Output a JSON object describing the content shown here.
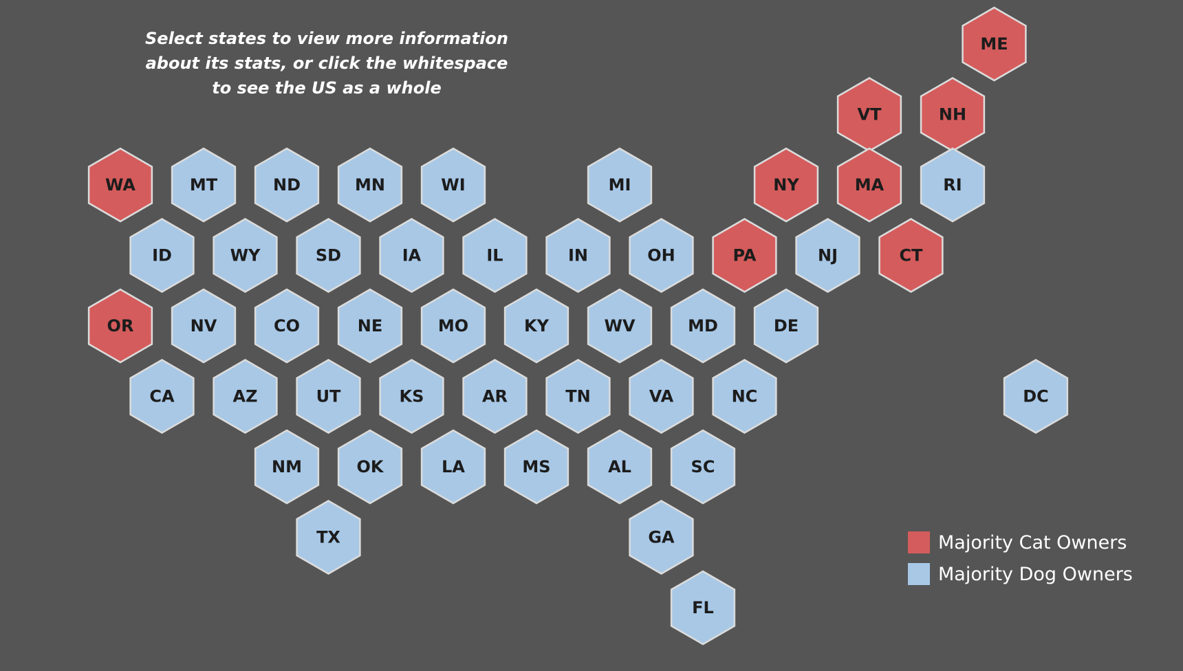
{
  "instructions": "Select states to view more information\nabout its stats, or click the whitespace\nto see the US as a whole",
  "colors": {
    "background": "#555555",
    "cat": "#d55c5c",
    "dog": "#a8c8e6"
  },
  "legend": [
    {
      "label": "Majority Cat Owners",
      "color": "#d55c5c"
    },
    {
      "label": "Majority Dog Owners",
      "color": "#a8c8e6"
    }
  ],
  "states": [
    {
      "abbr": "ME",
      "majority": "cat",
      "row": 0,
      "col": 10.5
    },
    {
      "abbr": "VT",
      "majority": "cat",
      "row": 1,
      "col": 9
    },
    {
      "abbr": "NH",
      "majority": "cat",
      "row": 1,
      "col": 10
    },
    {
      "abbr": "WA",
      "majority": "cat",
      "row": 2,
      "col": 0
    },
    {
      "abbr": "MT",
      "majority": "dog",
      "row": 2,
      "col": 1
    },
    {
      "abbr": "ND",
      "majority": "dog",
      "row": 2,
      "col": 2
    },
    {
      "abbr": "MN",
      "majority": "dog",
      "row": 2,
      "col": 3
    },
    {
      "abbr": "WI",
      "majority": "dog",
      "row": 2,
      "col": 4
    },
    {
      "abbr": "MI",
      "majority": "dog",
      "row": 2,
      "col": 6
    },
    {
      "abbr": "NY",
      "majority": "cat",
      "row": 2,
      "col": 8
    },
    {
      "abbr": "MA",
      "majority": "cat",
      "row": 2,
      "col": 9
    },
    {
      "abbr": "RI",
      "majority": "dog",
      "row": 2,
      "col": 10
    },
    {
      "abbr": "ID",
      "majority": "dog",
      "row": 3,
      "col": 0.5
    },
    {
      "abbr": "WY",
      "majority": "dog",
      "row": 3,
      "col": 1.5
    },
    {
      "abbr": "SD",
      "majority": "dog",
      "row": 3,
      "col": 2.5
    },
    {
      "abbr": "IA",
      "majority": "dog",
      "row": 3,
      "col": 3.5
    },
    {
      "abbr": "IL",
      "majority": "dog",
      "row": 3,
      "col": 4.5
    },
    {
      "abbr": "IN",
      "majority": "dog",
      "row": 3,
      "col": 5.5
    },
    {
      "abbr": "OH",
      "majority": "dog",
      "row": 3,
      "col": 6.5
    },
    {
      "abbr": "PA",
      "majority": "cat",
      "row": 3,
      "col": 7.5
    },
    {
      "abbr": "NJ",
      "majority": "dog",
      "row": 3,
      "col": 8.5
    },
    {
      "abbr": "CT",
      "majority": "cat",
      "row": 3,
      "col": 9.5
    },
    {
      "abbr": "OR",
      "majority": "cat",
      "row": 4,
      "col": 0
    },
    {
      "abbr": "NV",
      "majority": "dog",
      "row": 4,
      "col": 1
    },
    {
      "abbr": "CO",
      "majority": "dog",
      "row": 4,
      "col": 2
    },
    {
      "abbr": "NE",
      "majority": "dog",
      "row": 4,
      "col": 3
    },
    {
      "abbr": "MO",
      "majority": "dog",
      "row": 4,
      "col": 4
    },
    {
      "abbr": "KY",
      "majority": "dog",
      "row": 4,
      "col": 5
    },
    {
      "abbr": "WV",
      "majority": "dog",
      "row": 4,
      "col": 6
    },
    {
      "abbr": "MD",
      "majority": "dog",
      "row": 4,
      "col": 7
    },
    {
      "abbr": "DE",
      "majority": "dog",
      "row": 4,
      "col": 8
    },
    {
      "abbr": "CA",
      "majority": "dog",
      "row": 5,
      "col": 0.5
    },
    {
      "abbr": "AZ",
      "majority": "dog",
      "row": 5,
      "col": 1.5
    },
    {
      "abbr": "UT",
      "majority": "dog",
      "row": 5,
      "col": 2.5
    },
    {
      "abbr": "KS",
      "majority": "dog",
      "row": 5,
      "col": 3.5
    },
    {
      "abbr": "AR",
      "majority": "dog",
      "row": 5,
      "col": 4.5
    },
    {
      "abbr": "TN",
      "majority": "dog",
      "row": 5,
      "col": 5.5
    },
    {
      "abbr": "VA",
      "majority": "dog",
      "row": 5,
      "col": 6.5
    },
    {
      "abbr": "NC",
      "majority": "dog",
      "row": 5,
      "col": 7.5
    },
    {
      "abbr": "DC",
      "majority": "dog",
      "row": 5,
      "col": 11
    },
    {
      "abbr": "NM",
      "majority": "dog",
      "row": 6,
      "col": 2
    },
    {
      "abbr": "OK",
      "majority": "dog",
      "row": 6,
      "col": 3
    },
    {
      "abbr": "LA",
      "majority": "dog",
      "row": 6,
      "col": 4
    },
    {
      "abbr": "MS",
      "majority": "dog",
      "row": 6,
      "col": 5
    },
    {
      "abbr": "AL",
      "majority": "dog",
      "row": 6,
      "col": 6
    },
    {
      "abbr": "SC",
      "majority": "dog",
      "row": 6,
      "col": 7
    },
    {
      "abbr": "TX",
      "majority": "dog",
      "row": 7,
      "col": 2.5
    },
    {
      "abbr": "GA",
      "majority": "dog",
      "row": 7,
      "col": 6.5
    },
    {
      "abbr": "FL",
      "majority": "dog",
      "row": 8,
      "col": 7
    }
  ]
}
